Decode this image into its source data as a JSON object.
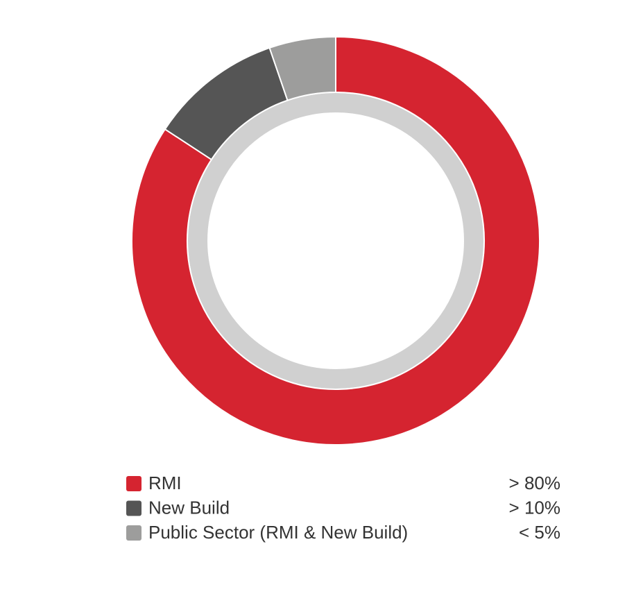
{
  "chart_data": {
    "type": "donut",
    "categories": [
      "RMI",
      "New Build",
      "Public Sector (RMI & New Build)"
    ],
    "values": [
      80,
      10,
      5
    ],
    "value_labels": [
      "> 80%",
      "> 10%",
      "< 5%"
    ],
    "colors": [
      "#d52430",
      "#555555",
      "#9d9d9c"
    ]
  }
}
